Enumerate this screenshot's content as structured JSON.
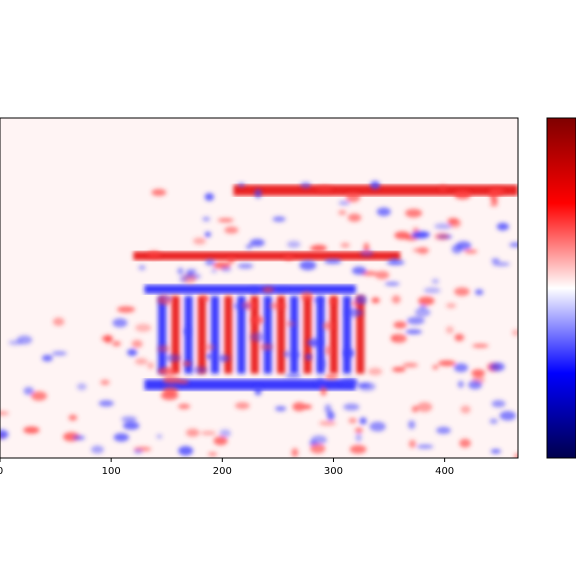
{
  "chart_data": {
    "type": "heatmap",
    "title": "",
    "xlabel": "",
    "ylabel": "",
    "colormap": "seismic",
    "colormap_colors": [
      "#00004c",
      "#0000ff",
      "#ffffff",
      "#ff0000",
      "#7f0000"
    ],
    "x_ticks": [
      0,
      100,
      200,
      300,
      400
    ],
    "x_range": [
      0,
      466
    ],
    "colorbar": {
      "tick_labels": []
    },
    "image_description_features": [
      {
        "name": "upper-roof-band",
        "sign": "positive",
        "x": [
          210,
          466
        ],
        "y_row": [
          60,
          70
        ]
      },
      {
        "name": "porch-roof-band",
        "sign": "positive",
        "x": [
          120,
          360
        ],
        "y_row": [
          120,
          128
        ]
      },
      {
        "name": "porch-lower-band",
        "sign": "negative",
        "x": [
          130,
          320
        ],
        "y_row": [
          150,
          158
        ]
      },
      {
        "name": "column-edges",
        "sign": "mixed",
        "x": [
          140,
          330
        ],
        "y_row": [
          160,
          230
        ]
      },
      {
        "name": "podium-band",
        "sign": "negative",
        "x": [
          130,
          320
        ],
        "y_row": [
          235,
          245
        ]
      },
      {
        "name": "ground-band",
        "sign": "positive",
        "x": [
          0,
          466
        ],
        "y_row": [
          310,
          330
        ]
      }
    ]
  }
}
